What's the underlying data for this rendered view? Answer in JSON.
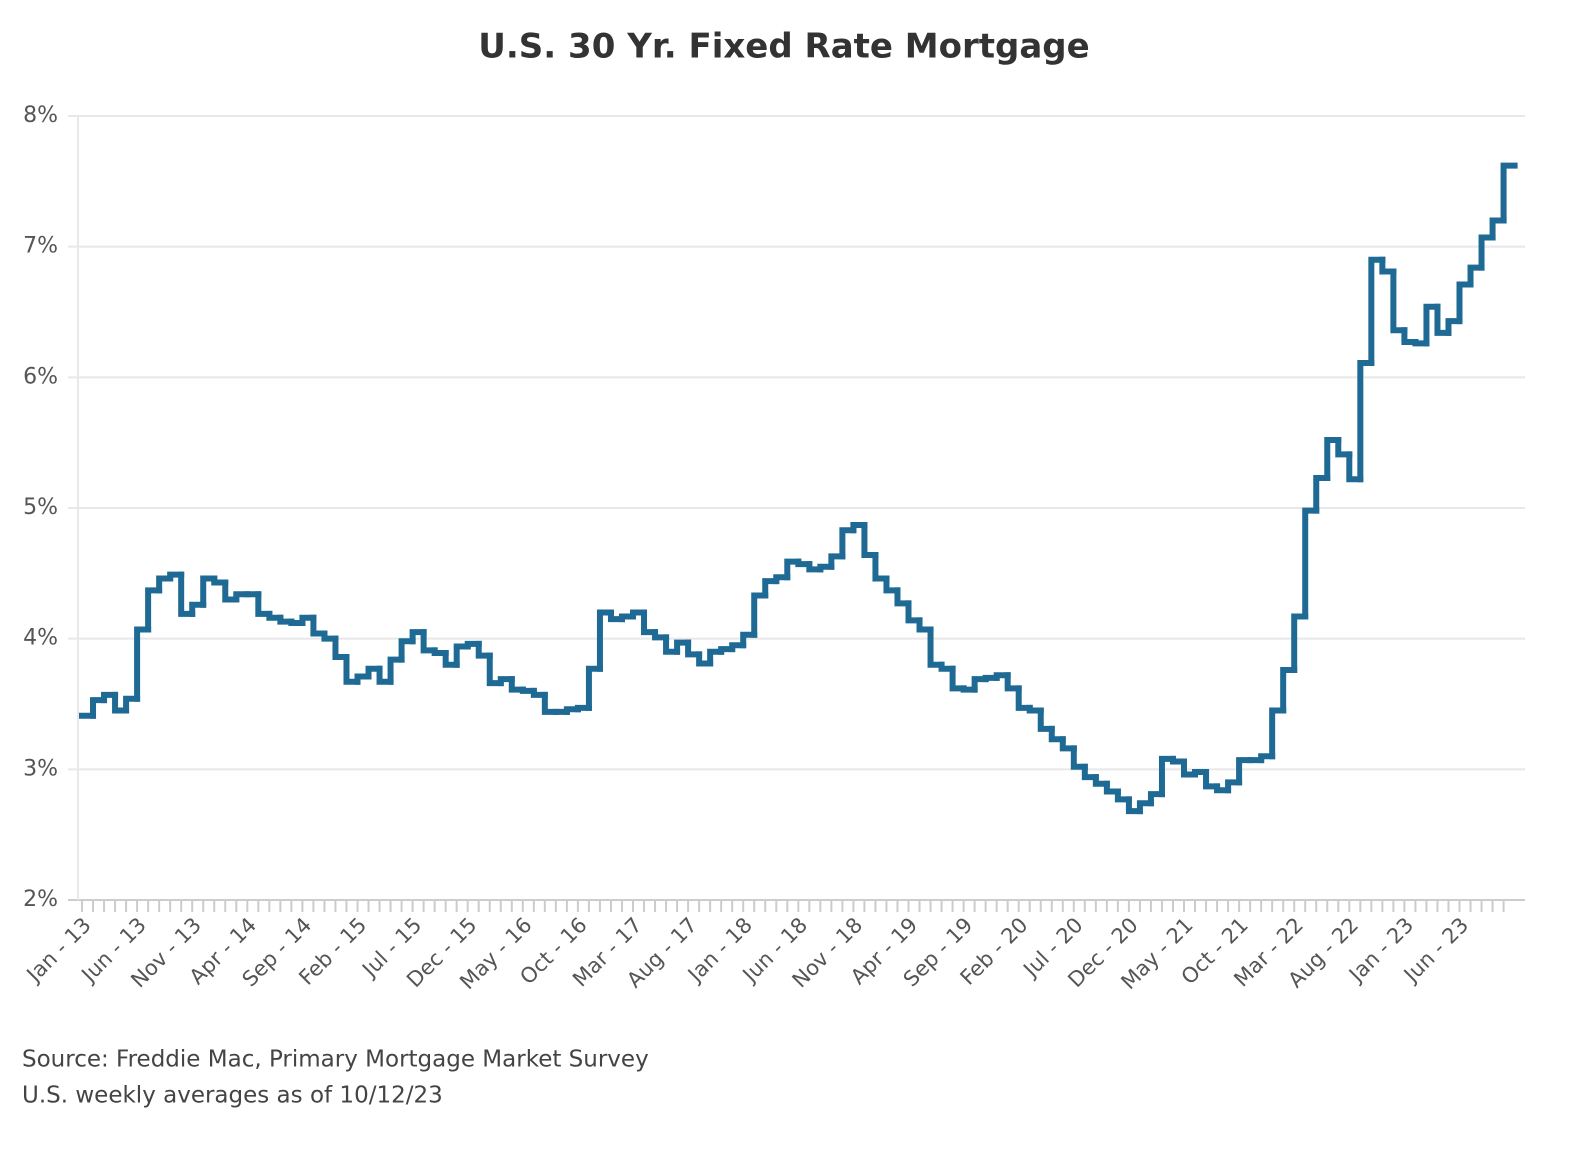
{
  "chart_data": {
    "type": "step-line",
    "title": "U.S. 30 Yr. Fixed Rate Mortgage",
    "source": "Source: Freddie Mac, Primary Mortgage Market Survey",
    "note": "U.S. weekly averages as of 10/12/23",
    "categories": [
      "Jan - 13",
      null,
      null,
      null,
      null,
      "Jun - 13",
      null,
      null,
      null,
      null,
      "Nov - 13",
      null,
      null,
      null,
      null,
      "Apr - 14",
      null,
      null,
      null,
      null,
      "Sep - 14",
      null,
      null,
      null,
      null,
      "Feb - 15",
      null,
      null,
      null,
      null,
      "Jul - 15",
      null,
      null,
      null,
      null,
      "Dec - 15",
      null,
      null,
      null,
      null,
      "May - 16",
      null,
      null,
      null,
      null,
      "Oct - 16",
      null,
      null,
      null,
      null,
      "Mar - 17",
      null,
      null,
      null,
      null,
      "Aug - 17",
      null,
      null,
      null,
      null,
      "Jan - 18",
      null,
      null,
      null,
      null,
      "Jun - 18",
      null,
      null,
      null,
      null,
      "Nov - 18",
      null,
      null,
      null,
      null,
      "Apr - 19",
      null,
      null,
      null,
      null,
      "Sep - 19",
      null,
      null,
      null,
      null,
      "Feb - 20",
      null,
      null,
      null,
      null,
      "Jul - 20",
      null,
      null,
      null,
      null,
      "Dec - 20",
      null,
      null,
      null,
      null,
      "May - 21",
      null,
      null,
      null,
      null,
      "Oct - 21",
      null,
      null,
      null,
      null,
      "Mar - 22",
      null,
      null,
      null,
      null,
      "Aug - 22",
      null,
      null,
      null,
      null,
      "Jan - 23",
      null,
      null,
      null,
      null,
      "Jun - 23",
      null,
      null,
      null,
      null
    ],
    "series": [
      {
        "name": "30 Yr. Fixed Rate",
        "color": "#1f6a94",
        "values": [
          3.41,
          3.53,
          3.57,
          3.45,
          3.54,
          4.07,
          4.37,
          4.46,
          4.49,
          4.19,
          4.26,
          4.46,
          4.43,
          4.3,
          4.34,
          4.34,
          4.19,
          4.16,
          4.13,
          4.12,
          4.16,
          4.04,
          4.0,
          3.86,
          3.67,
          3.71,
          3.77,
          3.67,
          3.84,
          3.98,
          4.05,
          3.91,
          3.89,
          3.8,
          3.94,
          3.96,
          3.87,
          3.66,
          3.69,
          3.61,
          3.6,
          3.57,
          3.44,
          3.44,
          3.46,
          3.47,
          3.77,
          4.2,
          4.15,
          4.17,
          4.2,
          4.05,
          4.01,
          3.9,
          3.97,
          3.88,
          3.81,
          3.9,
          3.92,
          3.95,
          4.03,
          4.33,
          4.44,
          4.47,
          4.59,
          4.57,
          4.53,
          4.55,
          4.63,
          4.83,
          4.87,
          4.64,
          4.46,
          4.37,
          4.27,
          4.14,
          4.07,
          3.8,
          3.77,
          3.62,
          3.61,
          3.69,
          3.7,
          3.72,
          3.62,
          3.47,
          3.45,
          3.31,
          3.23,
          3.16,
          3.02,
          2.94,
          2.89,
          2.83,
          2.77,
          2.68,
          2.74,
          2.81,
          3.08,
          3.06,
          2.96,
          2.98,
          2.87,
          2.84,
          2.9,
          3.07,
          3.07,
          3.1,
          3.45,
          3.76,
          4.17,
          4.98,
          5.23,
          5.52,
          5.41,
          5.22,
          6.11,
          6.9,
          6.81,
          6.36,
          6.27,
          6.26,
          6.54,
          6.34,
          6.43,
          6.71,
          6.84,
          7.07,
          7.2,
          7.62
        ]
      }
    ],
    "ylim": [
      2,
      8
    ],
    "yticks": [
      {
        "value": 2,
        "label": "2%"
      },
      {
        "value": 3,
        "label": "3%"
      },
      {
        "value": 4,
        "label": "4%"
      },
      {
        "value": 5,
        "label": "5%"
      },
      {
        "value": 6,
        "label": "6%"
      },
      {
        "value": 7,
        "label": "7%"
      },
      {
        "value": 8,
        "label": "8%"
      }
    ],
    "grid": true
  }
}
